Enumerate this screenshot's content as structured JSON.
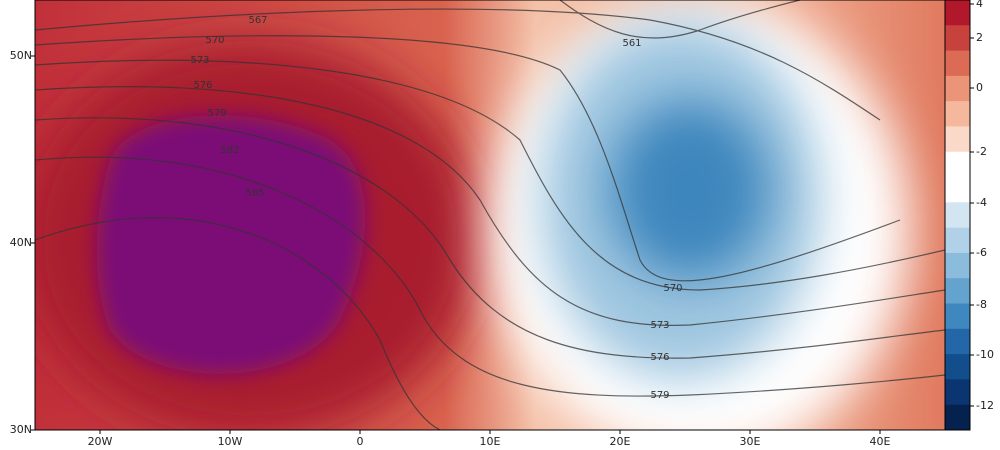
{
  "map": {
    "lat_labels": [
      "50N",
      "40N",
      "30N"
    ],
    "lon_labels": [
      "20W",
      "10W",
      "0",
      "10E",
      "20E",
      "30E",
      "40E"
    ],
    "contour_labels": [
      567,
      570,
      573,
      576,
      579,
      582,
      585,
      561,
      570,
      573,
      576,
      579
    ],
    "colorbar_ticks": [
      4,
      2,
      0,
      -2,
      -4,
      -6,
      -8,
      -10,
      -12
    ]
  }
}
